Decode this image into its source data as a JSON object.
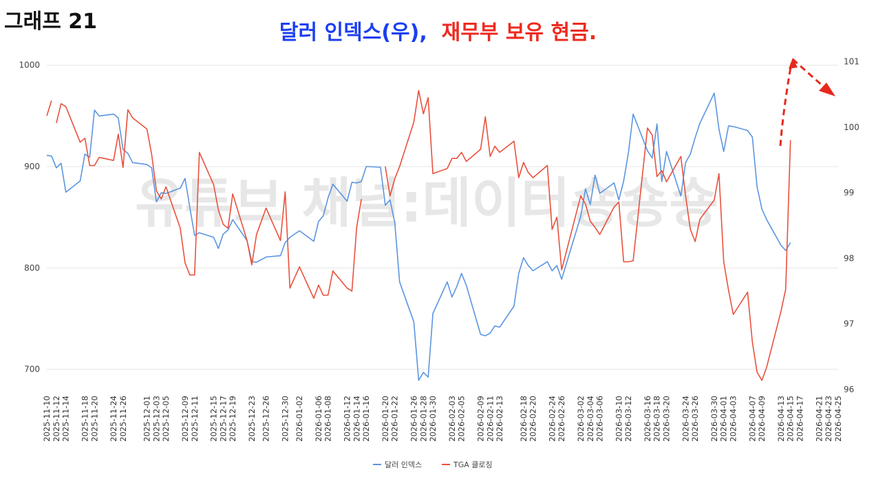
{
  "header": {
    "graph_label": "그래프 21",
    "title_part1": "달러 인덱스(우),",
    "title_part2": "재무부 보유 현금."
  },
  "watermark": "유튜브 채널:데이터숑숑숑",
  "colors": {
    "dollar_index": "#5b95e0",
    "tga": "#e8513c",
    "arrow": "#e8281c",
    "grid": "#e6e6e6"
  },
  "chart_data": {
    "type": "line",
    "title": "달러 인덱스(우), 재무부 보유 현금.",
    "x_tick_labels": [
      "2025-11-10",
      "2025-11-12",
      "2025-11-14",
      "2025-11-18",
      "2025-11-20",
      "2025-11-24",
      "2025-11-26",
      "2025-12-01",
      "2025-12-03",
      "2025-12-05",
      "2025-12-09",
      "2025-12-11",
      "2025-12-15",
      "2025-12-17",
      "2025-12-19",
      "2025-12-23",
      "2025-12-26",
      "2025-12-30",
      "2026-01-02",
      "2026-01-06",
      "2026-01-08",
      "2026-01-12",
      "2026-01-14",
      "2026-01-16",
      "2026-01-20",
      "2026-01-22",
      "2026-01-26",
      "2026-01-28",
      "2026-01-30",
      "2026-02-03",
      "2026-02-05",
      "2026-02-09",
      "2026-02-11",
      "2026-02-13",
      "2026-02-18",
      "2026-02-20",
      "2026-02-24",
      "2026-02-26",
      "2026-03-02",
      "2026-03-04",
      "2026-03-06",
      "2026-03-10",
      "2026-03-12",
      "2026-03-16",
      "2026-03-18",
      "2026-03-20",
      "2026-03-24",
      "2026-03-26",
      "2026-03-30",
      "2026-04-01",
      "2026-04-03",
      "2026-04-07",
      "2026-04-09",
      "2026-04-13",
      "2026-04-15",
      "2026-04-17",
      "2026-04-21",
      "2026-04-23",
      "2026-04-25"
    ],
    "y_left": {
      "ticks": [
        700,
        800,
        900,
        1000
      ],
      "range": [
        680,
        1010
      ]
    },
    "y_right": {
      "ticks": [
        96,
        97,
        98,
        99,
        100,
        101
      ],
      "range": [
        96,
        101.1
      ]
    },
    "legend_position": "bottom",
    "gridlines": true,
    "x_range": [
      "2025-11-10",
      "2026-04-25"
    ],
    "series": [
      {
        "name": "달러 인덱스",
        "axis": "right",
        "points": [
          [
            "2025-11-10",
            99.57
          ],
          [
            "2025-11-11",
            99.56
          ],
          [
            "2025-11-12",
            99.38
          ],
          [
            "2025-11-13",
            99.45
          ],
          [
            "2025-11-14",
            99.01
          ],
          [
            "2025-11-17",
            99.18
          ],
          [
            "2025-11-18",
            99.59
          ],
          [
            "2025-11-19",
            99.54
          ],
          [
            "2025-11-20",
            100.26
          ],
          [
            "2025-11-21",
            100.17
          ],
          [
            "2025-11-24",
            100.2
          ],
          [
            "2025-11-25",
            100.14
          ],
          [
            "2025-11-26",
            99.66
          ],
          [
            "2025-11-27",
            99.6
          ],
          [
            "2025-11-28",
            99.46
          ],
          [
            "2025-12-01",
            99.43
          ],
          [
            "2025-12-02",
            99.38
          ],
          [
            "2025-12-03",
            98.86
          ],
          [
            "2025-12-04",
            99.0
          ],
          [
            "2025-12-05",
            98.99
          ],
          [
            "2025-12-08",
            99.07
          ],
          [
            "2025-12-09",
            99.22
          ],
          [
            "2025-12-10",
            98.78
          ],
          [
            "2025-12-11",
            98.35
          ],
          [
            "2025-12-12",
            98.39
          ],
          [
            "2025-12-15",
            98.32
          ],
          [
            "2025-12-16",
            98.15
          ],
          [
            "2025-12-17",
            98.37
          ],
          [
            "2025-12-18",
            98.43
          ],
          [
            "2025-12-19",
            98.59
          ],
          [
            "2025-12-22",
            98.27
          ],
          [
            "2025-12-23",
            97.95
          ],
          [
            "2025-12-24",
            97.94
          ],
          [
            "2025-12-26",
            98.02
          ],
          [
            "2025-12-29",
            98.04
          ],
          [
            "2025-12-30",
            98.24
          ],
          [
            "2025-12-31",
            98.32
          ],
          [
            "2026-01-02",
            98.42
          ],
          [
            "2026-01-05",
            98.26
          ],
          [
            "2026-01-06",
            98.56
          ],
          [
            "2026-01-07",
            98.65
          ],
          [
            "2026-01-08",
            98.92
          ],
          [
            "2026-01-09",
            99.13
          ],
          [
            "2026-01-12",
            98.87
          ],
          [
            "2026-01-13",
            99.16
          ],
          [
            "2026-01-14",
            99.15
          ],
          [
            "2026-01-15",
            99.17
          ],
          [
            "2026-01-16",
            99.4
          ],
          [
            "2026-01-19",
            99.39
          ],
          [
            "2026-01-20",
            98.81
          ],
          [
            "2026-01-21",
            98.89
          ],
          [
            "2026-01-22",
            98.54
          ],
          [
            "2026-01-23",
            97.64
          ],
          [
            "2026-01-26",
            97.03
          ],
          [
            "2026-01-27",
            96.14
          ],
          [
            "2026-01-28",
            96.26
          ],
          [
            "2026-01-29",
            96.19
          ],
          [
            "2026-01-30",
            97.16
          ],
          [
            "2026-02-02",
            97.64
          ],
          [
            "2026-02-03",
            97.41
          ],
          [
            "2026-02-04",
            97.57
          ],
          [
            "2026-02-05",
            97.77
          ],
          [
            "2026-02-06",
            97.59
          ],
          [
            "2026-02-09",
            96.84
          ],
          [
            "2026-02-10",
            96.82
          ],
          [
            "2026-02-11",
            96.86
          ],
          [
            "2026-02-12",
            96.97
          ],
          [
            "2026-02-13",
            96.95
          ],
          [
            "2026-02-16",
            97.27
          ],
          [
            "2026-02-17",
            97.77
          ],
          [
            "2026-02-18",
            98.01
          ],
          [
            "2026-02-19",
            97.89
          ],
          [
            "2026-02-20",
            97.81
          ],
          [
            "2026-02-23",
            97.95
          ],
          [
            "2026-02-24",
            97.81
          ],
          [
            "2026-02-25",
            97.89
          ],
          [
            "2026-02-26",
            97.68
          ],
          [
            "2026-03-02",
            98.64
          ],
          [
            "2026-03-03",
            99.06
          ],
          [
            "2026-03-04",
            98.82
          ],
          [
            "2026-03-05",
            99.27
          ],
          [
            "2026-03-06",
            98.99
          ],
          [
            "2026-03-09",
            99.15
          ],
          [
            "2026-03-10",
            98.89
          ],
          [
            "2026-03-11",
            99.18
          ],
          [
            "2026-03-12",
            99.61
          ],
          [
            "2026-03-13",
            100.2
          ],
          [
            "2026-03-16",
            99.64
          ],
          [
            "2026-03-17",
            99.53
          ],
          [
            "2026-03-18",
            100.05
          ],
          [
            "2026-03-19",
            99.17
          ],
          [
            "2026-03-20",
            99.63
          ],
          [
            "2026-03-23",
            98.95
          ],
          [
            "2026-03-24",
            99.46
          ],
          [
            "2026-03-25",
            99.59
          ],
          [
            "2026-03-26",
            99.84
          ],
          [
            "2026-03-27",
            100.06
          ],
          [
            "2026-03-30",
            100.52
          ],
          [
            "2026-03-31",
            99.97
          ],
          [
            "2026-04-01",
            99.63
          ],
          [
            "2026-04-02",
            100.02
          ],
          [
            "2026-04-03",
            100.01
          ],
          [
            "2026-04-06",
            99.95
          ],
          [
            "2026-04-07",
            99.85
          ],
          [
            "2026-04-08",
            99.09
          ],
          [
            "2026-04-09",
            98.75
          ],
          [
            "2026-04-10",
            98.59
          ],
          [
            "2026-04-13",
            98.2
          ],
          [
            "2026-04-14",
            98.12
          ],
          [
            "2026-04-15",
            98.24
          ]
        ]
      },
      {
        "name": "TGA 클로징",
        "axis": "left",
        "points": [
          [
            "2025-11-10",
            950
          ],
          [
            "2025-11-11",
            965
          ],
          null,
          [
            "2025-11-12",
            943
          ],
          [
            "2025-11-13",
            962
          ],
          [
            "2025-11-14",
            959
          ],
          [
            "2025-11-17",
            924
          ],
          [
            "2025-11-18",
            928
          ],
          [
            "2025-11-19",
            901
          ],
          [
            "2025-11-20",
            901
          ],
          [
            "2025-11-21",
            909
          ],
          [
            "2025-11-24",
            906
          ],
          [
            "2025-11-25",
            932
          ],
          [
            "2025-11-26",
            899
          ],
          [
            "2025-11-27",
            956
          ],
          [
            "2025-11-28",
            948
          ],
          [
            "2025-12-01",
            937
          ],
          [
            "2025-12-02",
            912
          ],
          [
            "2025-12-03",
            876
          ],
          [
            "2025-12-04",
            868
          ],
          [
            "2025-12-05",
            880
          ],
          [
            "2025-12-08",
            839
          ],
          [
            "2025-12-09",
            805
          ],
          [
            "2025-12-10",
            793
          ],
          [
            "2025-12-11",
            793
          ],
          [
            "2025-12-12",
            914
          ],
          [
            "2025-12-15",
            882
          ],
          [
            "2025-12-16",
            857
          ],
          [
            "2025-12-17",
            843
          ],
          [
            "2025-12-18",
            839
          ],
          [
            "2025-12-19",
            873
          ],
          [
            "2025-12-22",
            827
          ],
          [
            "2025-12-23",
            803
          ],
          [
            "2025-12-24",
            833
          ],
          [
            "2025-12-26",
            859
          ],
          [
            "2025-12-29",
            827
          ],
          [
            "2025-12-30",
            875
          ],
          [
            "2025-12-31",
            780
          ],
          [
            "2026-01-02",
            801
          ],
          [
            "2026-01-05",
            770
          ],
          [
            "2026-01-06",
            783
          ],
          [
            "2026-01-07",
            773
          ],
          [
            "2026-01-08",
            773
          ],
          [
            "2026-01-09",
            797
          ],
          [
            "2026-01-12",
            780
          ],
          [
            "2026-01-13",
            777
          ],
          [
            "2026-01-14",
            840
          ],
          [
            "2026-01-15",
            868
          ],
          null,
          [
            "2026-01-20",
            900
          ],
          [
            "2026-01-21",
            871
          ],
          [
            "2026-01-22",
            888
          ],
          [
            "2026-01-23",
            900
          ],
          [
            "2026-01-26",
            944
          ],
          [
            "2026-01-27",
            975
          ],
          [
            "2026-01-28",
            952
          ],
          [
            "2026-01-29",
            968
          ],
          [
            "2026-01-30",
            893
          ],
          [
            "2026-02-02",
            898
          ],
          [
            "2026-02-03",
            908
          ],
          [
            "2026-02-04",
            908
          ],
          [
            "2026-02-05",
            914
          ],
          [
            "2026-02-06",
            905
          ],
          [
            "2026-02-09",
            917
          ],
          [
            "2026-02-10",
            949
          ],
          [
            "2026-02-11",
            910
          ],
          [
            "2026-02-12",
            920
          ],
          [
            "2026-02-13",
            914
          ],
          [
            "2026-02-16",
            925
          ],
          [
            "2026-02-17",
            889
          ],
          [
            "2026-02-18",
            904
          ],
          [
            "2026-02-19",
            894
          ],
          [
            "2026-02-20",
            889
          ],
          [
            "2026-02-23",
            901
          ],
          [
            "2026-02-24",
            838
          ],
          [
            "2026-02-25",
            850
          ],
          [
            "2026-02-26",
            798
          ],
          [
            "2026-03-02",
            871
          ],
          [
            "2026-03-03",
            863
          ],
          [
            "2026-03-04",
            846
          ],
          [
            "2026-03-05",
            840
          ],
          [
            "2026-03-06",
            833
          ],
          [
            "2026-03-09",
            860
          ],
          [
            "2026-03-10",
            865
          ],
          [
            "2026-03-11",
            806
          ],
          [
            "2026-03-12",
            806
          ],
          [
            "2026-03-13",
            807
          ],
          [
            "2026-03-16",
            938
          ],
          [
            "2026-03-17",
            931
          ],
          [
            "2026-03-18",
            890
          ],
          [
            "2026-03-19",
            896
          ],
          [
            "2026-03-20",
            885
          ],
          [
            "2026-03-23",
            910
          ],
          [
            "2026-03-24",
            871
          ],
          [
            "2026-03-25",
            838
          ],
          [
            "2026-03-26",
            826
          ],
          [
            "2026-03-27",
            848
          ],
          [
            "2026-03-30",
            867
          ],
          [
            "2026-03-31",
            893
          ],
          [
            "2026-04-01",
            806
          ],
          [
            "2026-04-02",
            778
          ],
          [
            "2026-04-03",
            754
          ],
          [
            "2026-04-06",
            776
          ],
          [
            "2026-04-07",
            727
          ],
          [
            "2026-04-08",
            697
          ],
          [
            "2026-04-09",
            689
          ],
          [
            "2026-04-10",
            702
          ],
          [
            "2026-04-13",
            757
          ],
          [
            "2026-04-14",
            779
          ],
          [
            "2026-04-15",
            926
          ]
        ]
      }
    ]
  },
  "legend": {
    "items": [
      {
        "label": "달러 인덱스",
        "color": "#5b95e0"
      },
      {
        "label": "TGA 클로징",
        "color": "#e8513c"
      }
    ]
  }
}
